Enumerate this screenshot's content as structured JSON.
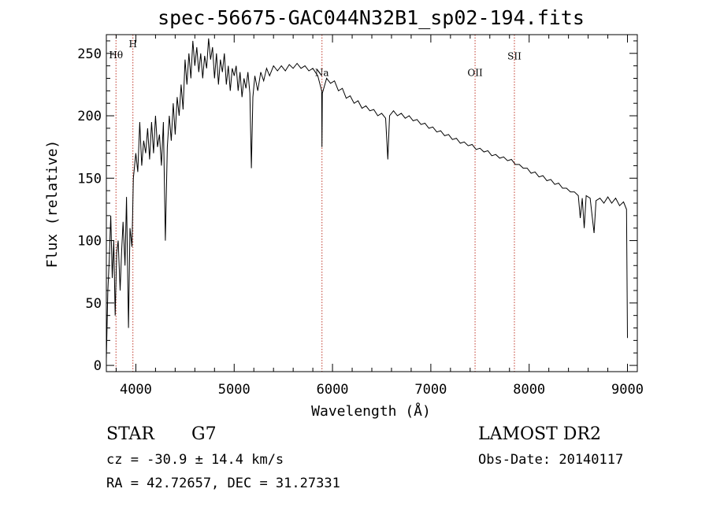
{
  "chart_data": {
    "type": "line",
    "title": "spec-56675-GAC044N32B1_sp02-194.fits",
    "xlabel": "Wavelength (Å)",
    "ylabel": "Flux (relative)",
    "xlim": [
      3700,
      9100
    ],
    "ylim": [
      -5,
      265
    ],
    "xticks": [
      4000,
      5000,
      6000,
      7000,
      8000,
      9000
    ],
    "yticks": [
      0,
      50,
      100,
      150,
      200,
      250
    ],
    "grid": false,
    "series": [
      {
        "points": [
          [
            3700,
            5
          ],
          [
            3715,
            60
          ],
          [
            3730,
            85
          ],
          [
            3745,
            120
          ],
          [
            3760,
            70
          ],
          [
            3775,
            100
          ],
          [
            3790,
            40
          ],
          [
            3805,
            90
          ],
          [
            3820,
            100
          ],
          [
            3840,
            60
          ],
          [
            3855,
            90
          ],
          [
            3870,
            115
          ],
          [
            3890,
            80
          ],
          [
            3905,
            135
          ],
          [
            3925,
            30
          ],
          [
            3940,
            110
          ],
          [
            3960,
            95
          ],
          [
            3975,
            150
          ],
          [
            4000,
            170
          ],
          [
            4020,
            155
          ],
          [
            4040,
            195
          ],
          [
            4060,
            160
          ],
          [
            4080,
            180
          ],
          [
            4100,
            170
          ],
          [
            4120,
            190
          ],
          [
            4140,
            165
          ],
          [
            4160,
            195
          ],
          [
            4180,
            170
          ],
          [
            4200,
            200
          ],
          [
            4220,
            175
          ],
          [
            4240,
            185
          ],
          [
            4260,
            160
          ],
          [
            4280,
            195
          ],
          [
            4300,
            100
          ],
          [
            4320,
            175
          ],
          [
            4340,
            200
          ],
          [
            4360,
            180
          ],
          [
            4380,
            210
          ],
          [
            4400,
            185
          ],
          [
            4420,
            215
          ],
          [
            4440,
            200
          ],
          [
            4460,
            225
          ],
          [
            4480,
            205
          ],
          [
            4500,
            245
          ],
          [
            4520,
            225
          ],
          [
            4540,
            250
          ],
          [
            4560,
            230
          ],
          [
            4580,
            260
          ],
          [
            4600,
            240
          ],
          [
            4620,
            255
          ],
          [
            4640,
            235
          ],
          [
            4660,
            250
          ],
          [
            4680,
            230
          ],
          [
            4700,
            248
          ],
          [
            4720,
            238
          ],
          [
            4740,
            262
          ],
          [
            4760,
            245
          ],
          [
            4780,
            255
          ],
          [
            4800,
            230
          ],
          [
            4820,
            250
          ],
          [
            4840,
            225
          ],
          [
            4860,
            245
          ],
          [
            4880,
            235
          ],
          [
            4900,
            250
          ],
          [
            4920,
            225
          ],
          [
            4940,
            240
          ],
          [
            4960,
            220
          ],
          [
            4980,
            238
          ],
          [
            5000,
            232
          ],
          [
            5020,
            240
          ],
          [
            5040,
            220
          ],
          [
            5060,
            235
          ],
          [
            5080,
            215
          ],
          [
            5100,
            230
          ],
          [
            5120,
            222
          ],
          [
            5140,
            235
          ],
          [
            5160,
            218
          ],
          [
            5175,
            158
          ],
          [
            5190,
            215
          ],
          [
            5210,
            232
          ],
          [
            5240,
            220
          ],
          [
            5270,
            235
          ],
          [
            5300,
            228
          ],
          [
            5330,
            238
          ],
          [
            5360,
            232
          ],
          [
            5400,
            240
          ],
          [
            5440,
            236
          ],
          [
            5480,
            240
          ],
          [
            5520,
            236
          ],
          [
            5560,
            241
          ],
          [
            5600,
            238
          ],
          [
            5640,
            242
          ],
          [
            5680,
            238
          ],
          [
            5720,
            240
          ],
          [
            5760,
            236
          ],
          [
            5800,
            238
          ],
          [
            5850,
            232
          ],
          [
            5890,
            220
          ],
          [
            5893,
            175
          ],
          [
            5897,
            218
          ],
          [
            5940,
            230
          ],
          [
            5980,
            226
          ],
          [
            6020,
            228
          ],
          [
            6060,
            220
          ],
          [
            6100,
            222
          ],
          [
            6140,
            214
          ],
          [
            6180,
            216
          ],
          [
            6220,
            210
          ],
          [
            6260,
            212
          ],
          [
            6300,
            206
          ],
          [
            6340,
            208
          ],
          [
            6380,
            204
          ],
          [
            6420,
            205
          ],
          [
            6460,
            200
          ],
          [
            6500,
            202
          ],
          [
            6540,
            198
          ],
          [
            6563,
            165
          ],
          [
            6580,
            200
          ],
          [
            6620,
            204
          ],
          [
            6660,
            200
          ],
          [
            6700,
            202
          ],
          [
            6740,
            198
          ],
          [
            6780,
            200
          ],
          [
            6820,
            196
          ],
          [
            6860,
            197
          ],
          [
            6900,
            193
          ],
          [
            6940,
            194
          ],
          [
            6980,
            190
          ],
          [
            7020,
            191
          ],
          [
            7060,
            187
          ],
          [
            7100,
            188
          ],
          [
            7140,
            184
          ],
          [
            7180,
            185
          ],
          [
            7220,
            181
          ],
          [
            7260,
            182
          ],
          [
            7300,
            178
          ],
          [
            7340,
            179
          ],
          [
            7380,
            176
          ],
          [
            7420,
            177
          ],
          [
            7460,
            173
          ],
          [
            7500,
            174
          ],
          [
            7540,
            171
          ],
          [
            7580,
            172
          ],
          [
            7620,
            168
          ],
          [
            7660,
            169
          ],
          [
            7700,
            166
          ],
          [
            7740,
            167
          ],
          [
            7780,
            164
          ],
          [
            7820,
            165
          ],
          [
            7860,
            161
          ],
          [
            7900,
            161
          ],
          [
            7940,
            158
          ],
          [
            7980,
            158
          ],
          [
            8020,
            154
          ],
          [
            8060,
            155
          ],
          [
            8100,
            151
          ],
          [
            8140,
            152
          ],
          [
            8180,
            148
          ],
          [
            8220,
            149
          ],
          [
            8260,
            145
          ],
          [
            8300,
            146
          ],
          [
            8340,
            142
          ],
          [
            8380,
            142
          ],
          [
            8420,
            139
          ],
          [
            8460,
            139
          ],
          [
            8500,
            136
          ],
          [
            8520,
            118
          ],
          [
            8540,
            134
          ],
          [
            8560,
            110
          ],
          [
            8580,
            136
          ],
          [
            8620,
            134
          ],
          [
            8660,
            106
          ],
          [
            8680,
            132
          ],
          [
            8720,
            134
          ],
          [
            8760,
            130
          ],
          [
            8800,
            135
          ],
          [
            8840,
            130
          ],
          [
            8880,
            134
          ],
          [
            8920,
            128
          ],
          [
            8960,
            131
          ],
          [
            8990,
            125
          ],
          [
            9000,
            22
          ]
        ]
      }
    ],
    "spectral_lines": [
      {
        "label": "Hθ",
        "wavelength": 3798,
        "label_flux": 246
      },
      {
        "label": "H",
        "wavelength": 3970,
        "label_flux": 255
      },
      {
        "label": "Na",
        "wavelength": 5893,
        "label_flux": 232
      },
      {
        "label": "OII",
        "wavelength": 7450,
        "label_flux": 232
      },
      {
        "label": "SII",
        "wavelength": 7850,
        "label_flux": 245
      }
    ],
    "line_marker_color": "#c0392b",
    "spectrum_color": "#000000"
  },
  "info": {
    "object_type": "STAR",
    "subclass": "G7",
    "survey": "LAMOST DR2",
    "cz": "cz = -30.9 ± 14.4 km/s",
    "obs_date": "Obs-Date: 20140117",
    "coords": "RA =  42.72657, DEC =  31.27331"
  }
}
